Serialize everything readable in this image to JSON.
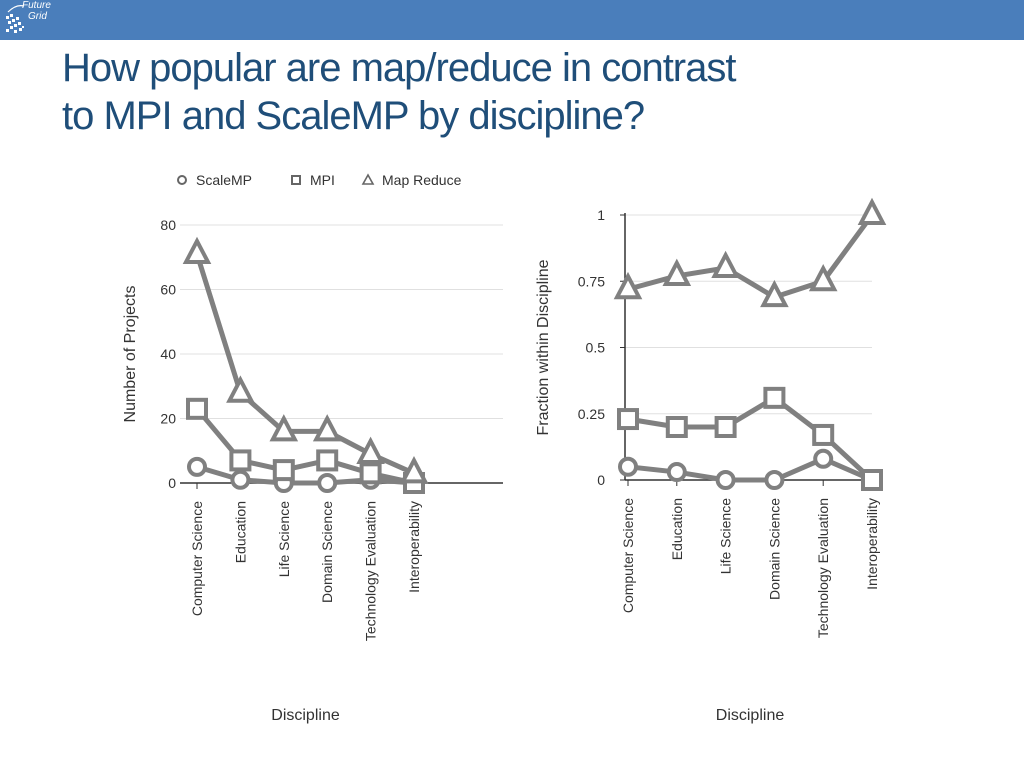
{
  "header": {
    "logo_line1": "Future",
    "logo_line2": "Grid",
    "bar_color": "#4a7ebb"
  },
  "slide": {
    "title_line1": "How popular are map/reduce in contrast",
    "title_line2": "to MPI and ScaleMP by discipline?",
    "title_color": "#1f4e79"
  },
  "legend": [
    "ScaleMP",
    "MPI",
    "Map Reduce"
  ],
  "chart_data": [
    {
      "type": "line",
      "categories": [
        "Computer Science",
        "Education",
        "Life Science",
        "Domain Science",
        "Technology Evaluation",
        "Interoperability"
      ],
      "series": [
        {
          "name": "ScaleMP",
          "marker": "circle",
          "values": [
            5,
            1,
            0,
            0,
            1,
            0
          ]
        },
        {
          "name": "MPI",
          "marker": "square",
          "values": [
            23,
            7,
            4,
            7,
            3,
            0
          ]
        },
        {
          "name": "Map Reduce",
          "marker": "triangle",
          "values": [
            71,
            28,
            16,
            16,
            9,
            3
          ]
        }
      ],
      "xlabel": "Discipline",
      "ylabel": "Number of Projects",
      "ylim": [
        0,
        80
      ],
      "yticks": [
        0,
        20,
        40,
        60,
        80
      ],
      "grid": true,
      "color": "#808080"
    },
    {
      "type": "line",
      "categories": [
        "Computer Science",
        "Education",
        "Life Science",
        "Domain Science",
        "Technology Evaluation",
        "Interoperability"
      ],
      "series": [
        {
          "name": "ScaleMP",
          "marker": "circle",
          "values": [
            0.05,
            0.03,
            0.0,
            0.0,
            0.08,
            0.0
          ]
        },
        {
          "name": "MPI",
          "marker": "square",
          "values": [
            0.23,
            0.2,
            0.2,
            0.31,
            0.17,
            0.0
          ]
        },
        {
          "name": "Map Reduce",
          "marker": "triangle",
          "values": [
            0.72,
            0.77,
            0.8,
            0.69,
            0.75,
            1.0
          ]
        }
      ],
      "xlabel": "Discipline",
      "ylabel": "Fraction within Discipline",
      "ylim": [
        0,
        1
      ],
      "yticks": [
        0,
        0.25,
        0.5,
        0.75,
        1
      ],
      "ytick_labels": [
        "0",
        "0.25",
        "0.5",
        "0.75",
        "1"
      ],
      "grid": true,
      "color": "#808080"
    }
  ]
}
